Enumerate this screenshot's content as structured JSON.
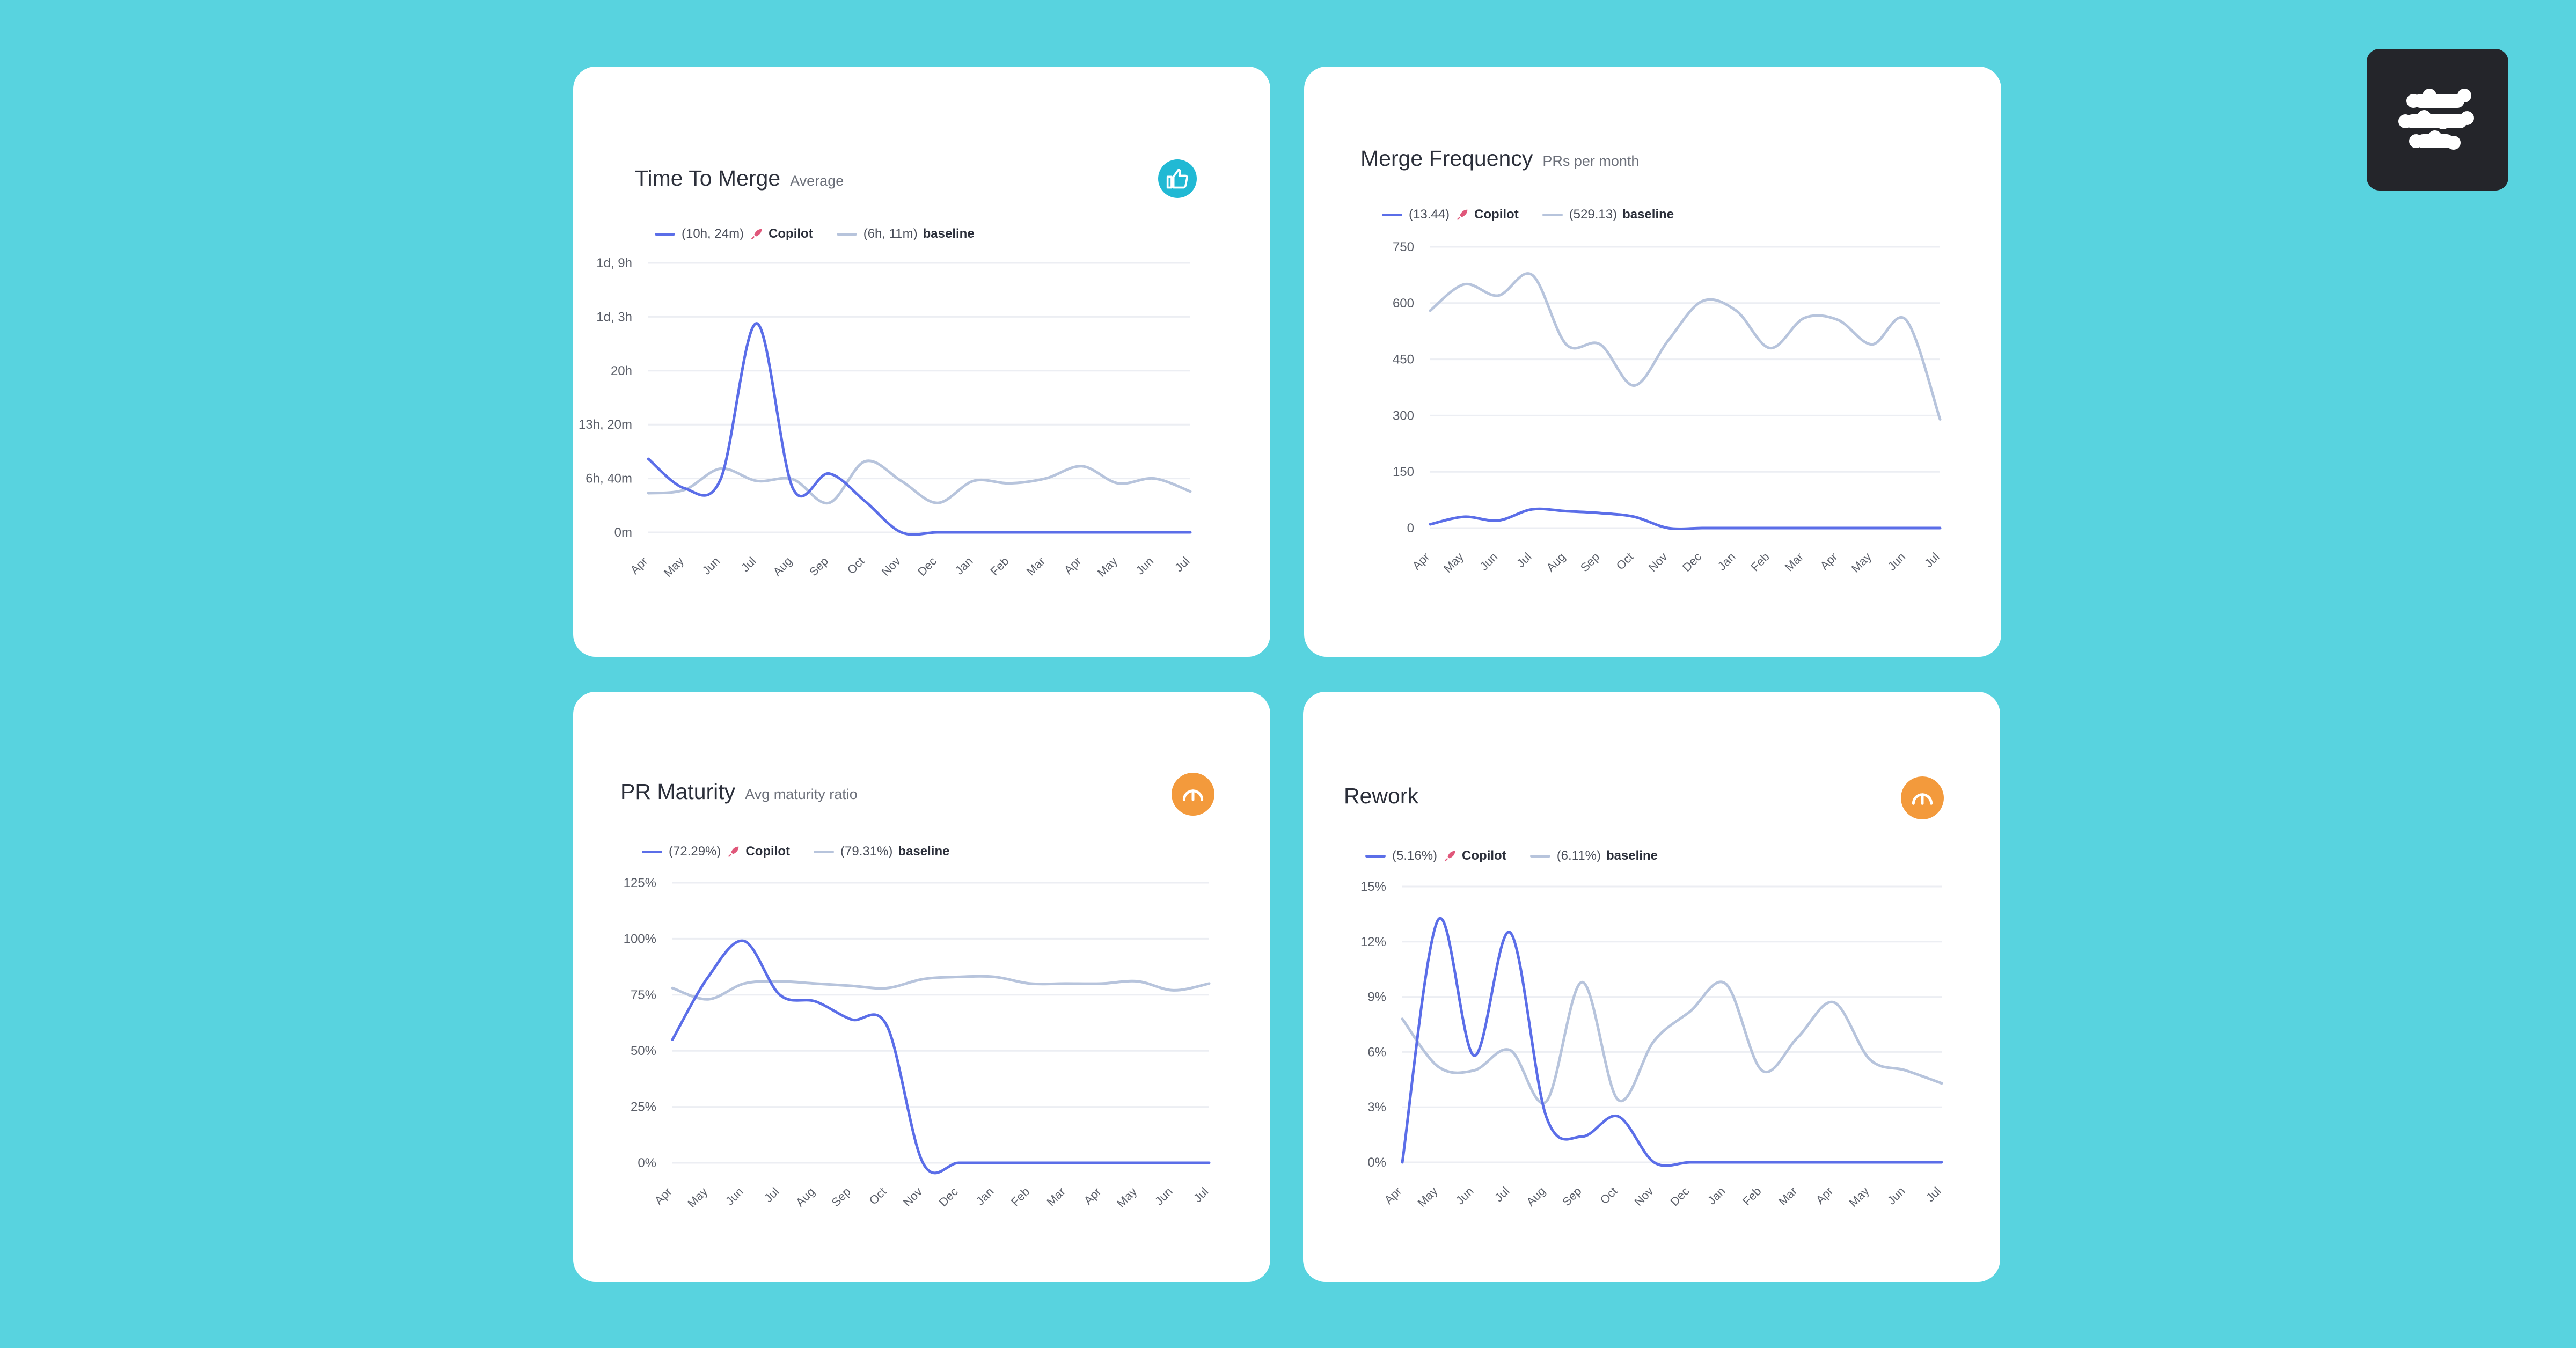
{
  "colors": {
    "background": "#58d3df",
    "copilot": "#5b6ee8",
    "baseline": "#b7c4dc",
    "grid": "#eceef3",
    "thumbs_badge": "#21b9d4",
    "speedometer_badge": "#f39a3c"
  },
  "logo": {
    "icon": "swirl-logo-icon"
  },
  "legend_labels": {
    "copilot": "Copilot",
    "baseline": "baseline"
  },
  "chart_data": [
    {
      "type": "line",
      "title": "Time To Merge",
      "subtitle": "Average",
      "status_icon": "thumbs-up-icon",
      "categories": [
        "Apr",
        "May",
        "Jun",
        "Jul",
        "Aug",
        "Sep",
        "Oct",
        "Nov",
        "Dec",
        "Jan",
        "Feb",
        "Mar",
        "Apr",
        "May",
        "Jun",
        "Jul"
      ],
      "y_ticks": [
        "0m",
        "6h, 40m",
        "13h, 20m",
        "20h",
        "1d, 3h",
        "1d, 9h"
      ],
      "ylim": [
        0,
        33
      ],
      "series": [
        {
          "name": "Copilot",
          "legend_value": "(10h, 24m)",
          "values": [
            9,
            5.4,
            6.5,
            25.6,
            5.4,
            7.2,
            3.8,
            0,
            0,
            0,
            0,
            0,
            0,
            0,
            0,
            0
          ]
        },
        {
          "name": "baseline",
          "legend_value": "(6h, 11m)",
          "values": [
            4.8,
            5.2,
            7.8,
            6.3,
            6.5,
            3.6,
            8.7,
            6.3,
            3.6,
            6.3,
            6,
            6.6,
            8.1,
            6,
            6.6,
            5
          ]
        }
      ]
    },
    {
      "type": "line",
      "title": "Merge Frequency",
      "subtitle": "PRs per month",
      "categories": [
        "Apr",
        "May",
        "Jun",
        "Jul",
        "Aug",
        "Sep",
        "Oct",
        "Nov",
        "Dec",
        "Jan",
        "Feb",
        "Mar",
        "Apr",
        "May",
        "Jun",
        "Jul"
      ],
      "y_ticks": [
        "0",
        "150",
        "300",
        "450",
        "600",
        "750"
      ],
      "ylim": [
        0,
        750
      ],
      "series": [
        {
          "name": "Copilot",
          "legend_value": "(13.44)",
          "values": [
            10,
            30,
            20,
            50,
            45,
            40,
            30,
            0,
            0,
            0,
            0,
            0,
            0,
            0,
            0,
            0
          ]
        },
        {
          "name": "baseline",
          "legend_value": "(529.13)",
          "values": [
            580,
            650,
            620,
            675,
            490,
            490,
            380,
            500,
            605,
            580,
            480,
            560,
            555,
            490,
            555,
            290
          ]
        }
      ]
    },
    {
      "type": "line",
      "title": "PR Maturity",
      "subtitle": "Avg maturity ratio",
      "status_icon": "speedometer-icon",
      "categories": [
        "Apr",
        "May",
        "Jun",
        "Jul",
        "Aug",
        "Sep",
        "Oct",
        "Nov",
        "Dec",
        "Jan",
        "Feb",
        "Mar",
        "Apr",
        "May",
        "Jun",
        "Jul"
      ],
      "y_ticks": [
        "0%",
        "25%",
        "50%",
        "75%",
        "100%",
        "125%"
      ],
      "ylim": [
        0,
        125
      ],
      "series": [
        {
          "name": "Copilot",
          "legend_value": "(72.29%)",
          "values": [
            55,
            83,
            99,
            75,
            72,
            64,
            61,
            0,
            0,
            0,
            0,
            0,
            0,
            0,
            0,
            0
          ]
        },
        {
          "name": "baseline",
          "legend_value": "(79.31%)",
          "values": [
            78,
            73,
            80,
            81,
            80,
            79,
            78,
            82,
            83,
            83,
            80,
            80,
            80,
            81,
            77,
            80
          ]
        }
      ]
    },
    {
      "type": "line",
      "title": "Rework",
      "subtitle": "",
      "status_icon": "speedometer-icon",
      "categories": [
        "Apr",
        "May",
        "Jun",
        "Jul",
        "Aug",
        "Sep",
        "Oct",
        "Nov",
        "Dec",
        "Jan",
        "Feb",
        "Mar",
        "Apr",
        "May",
        "Jun",
        "Jul"
      ],
      "y_ticks": [
        "0%",
        "3%",
        "6%",
        "9%",
        "12%",
        "15%"
      ],
      "ylim": [
        0,
        15
      ],
      "series": [
        {
          "name": "Copilot",
          "legend_value": "(5.16%)",
          "values": [
            0,
            13.2,
            5.8,
            12.5,
            2.5,
            1.4,
            2.5,
            0,
            0,
            0,
            0,
            0,
            0,
            0,
            0,
            0
          ]
        },
        {
          "name": "baseline",
          "legend_value": "(6.11%)",
          "values": [
            7.8,
            5.2,
            5,
            6.1,
            3.3,
            9.8,
            3.4,
            6.6,
            8.2,
            9.7,
            5,
            6.8,
            8.7,
            5.6,
            5,
            4.3
          ]
        }
      ]
    }
  ]
}
